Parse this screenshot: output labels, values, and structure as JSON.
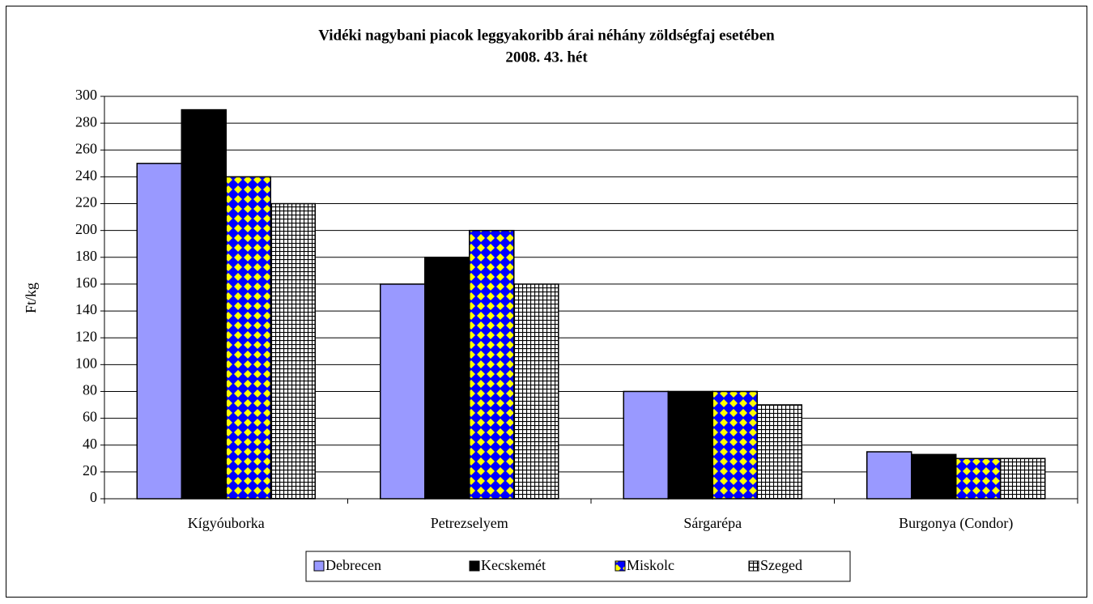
{
  "chart_data": {
    "type": "bar",
    "title": "Vidéki nagybani piacok leggyakoribb árai néhány zöldségfaj esetében",
    "subtitle": "2008. 43. hét",
    "y_label": "Ft/kg",
    "categories": [
      "Kígyóuborka",
      "Petrezselyem",
      "Sárgarépa",
      "Burgonya (Condor)"
    ],
    "series": [
      {
        "name": "Debrecen",
        "color": "#9999ff",
        "pattern": "solid",
        "values": [
          250,
          160,
          80,
          35
        ]
      },
      {
        "name": "Kecskemét",
        "color": "#000000",
        "pattern": "solid",
        "values": [
          290,
          180,
          80,
          33
        ]
      },
      {
        "name": "Miskolc",
        "color": "#0000ff",
        "pattern": "diamond",
        "values": [
          240,
          200,
          80,
          30
        ]
      },
      {
        "name": "Szeged",
        "color": "#ffffff",
        "pattern": "grid",
        "values": [
          220,
          160,
          70,
          30
        ]
      }
    ],
    "ylim": [
      0,
      300
    ],
    "yticks": [
      0,
      20,
      40,
      60,
      80,
      100,
      120,
      140,
      160,
      180,
      200,
      220,
      240,
      260,
      280,
      300
    ],
    "grid": true,
    "legend": "bottom"
  }
}
